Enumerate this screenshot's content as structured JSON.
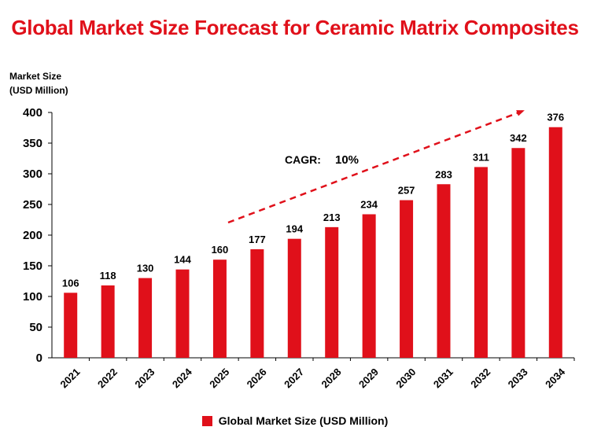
{
  "chart_data": {
    "type": "bar",
    "title": "Global Market Size Forecast for Ceramic Matrix Composites",
    "ylabel_lines": [
      "Market Size",
      "(USD Million)"
    ],
    "xlabel": "",
    "ylim": [
      0,
      400
    ],
    "yticks": [
      0,
      50,
      100,
      150,
      200,
      250,
      300,
      350,
      400
    ],
    "categories": [
      "2021",
      "2022",
      "2023",
      "2024",
      "2025",
      "2026",
      "2027",
      "2028",
      "2029",
      "2030",
      "2031",
      "2032",
      "2033",
      "2034"
    ],
    "series": [
      {
        "name": "Global Market Size (USD Million)",
        "color": "#e0101a",
        "values": [
          106,
          118,
          130,
          144,
          160,
          177,
          194,
          213,
          234,
          257,
          283,
          311,
          342,
          376
        ]
      }
    ],
    "annotation": {
      "label": "CAGR:",
      "value": "10%"
    },
    "legend_position": "bottom-center",
    "grid": false
  }
}
